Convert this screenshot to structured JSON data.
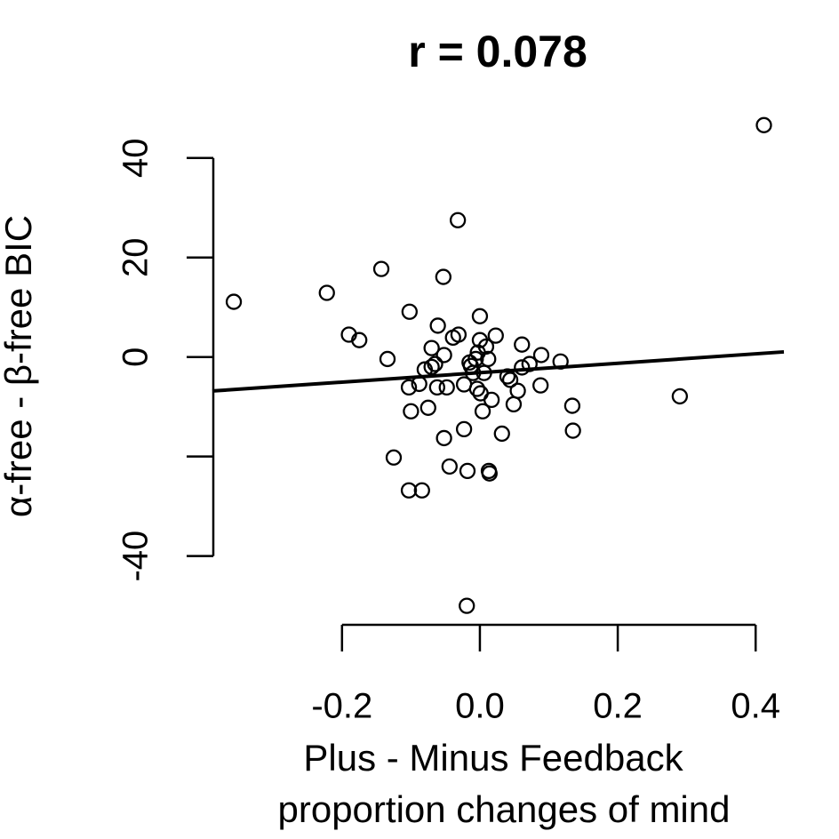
{
  "chart_data": {
    "type": "scatter",
    "title": "r =  0.078",
    "xlabel": [
      "Plus - Minus Feedback",
      "proportion changes of mind"
    ],
    "ylabel": "α-free - β-free BIC",
    "xlim": [
      -0.388,
      0.441
    ],
    "ylim": [
      -54,
      50.5
    ],
    "xticks": [
      -0.2,
      {
        "value": 0,
        "label": "0.0"
      },
      0.2,
      0.4
    ],
    "yticks": [
      -40,
      {
        "value": -20,
        "label": null
      },
      0,
      20,
      40
    ],
    "color": "#000000",
    "x": [
      -0.357,
      -0.222,
      -0.143,
      -0.19,
      -0.175,
      -0.134,
      -0.102,
      -0.125,
      -0.103,
      -0.084,
      -0.1,
      -0.075,
      -0.103,
      -0.088,
      -0.08,
      -0.07,
      -0.061,
      -0.053,
      -0.052,
      -0.062,
      -0.065,
      -0.07,
      -0.052,
      -0.044,
      -0.048,
      -0.032,
      -0.039,
      -0.031,
      -0.023,
      -0.018,
      -0.019,
      -0.023,
      -0.013,
      -0.015,
      -0.006,
      0.0,
      0.0,
      -0.003,
      -0.004,
      0.001,
      0.004,
      0.009,
      0.012,
      0.013,
      0.014,
      0.017,
      0.023,
      0.032,
      0.04,
      0.044,
      0.049,
      0.055,
      0.061,
      0.061,
      0.072,
      0.088,
      0.089,
      0.117,
      0.134,
      0.135,
      0.29,
      0.412,
      -0.01,
      0.006
    ],
    "y": [
      11.1,
      12.9,
      17.7,
      4.5,
      3.4,
      -0.4,
      9.1,
      -20.2,
      -26.8,
      -26.8,
      -10.9,
      -10.2,
      -6.1,
      -5.4,
      -2.5,
      -2.0,
      6.3,
      16.1,
      0.4,
      -6.1,
      -1.4,
      1.8,
      -16.3,
      -22.0,
      -6.1,
      27.5,
      3.9,
      4.5,
      -14.5,
      -22.9,
      -50,
      -5.5,
      -1.8,
      -1.1,
      -0.4,
      8.2,
      3.4,
      0.9,
      -6.4,
      -7.3,
      -10.9,
      2.1,
      -0.4,
      -22.9,
      -23.4,
      -8.6,
      4.3,
      -15.4,
      -3.9,
      -4.6,
      -9.5,
      -6.8,
      2.5,
      -2.1,
      -1.4,
      -5.7,
      0.4,
      -0.9,
      -9.8,
      -14.8,
      -7.9,
      46.6,
      -3.2,
      -3.2
    ],
    "regression": {
      "slope": 9.48,
      "intercept": -3.15
    }
  }
}
